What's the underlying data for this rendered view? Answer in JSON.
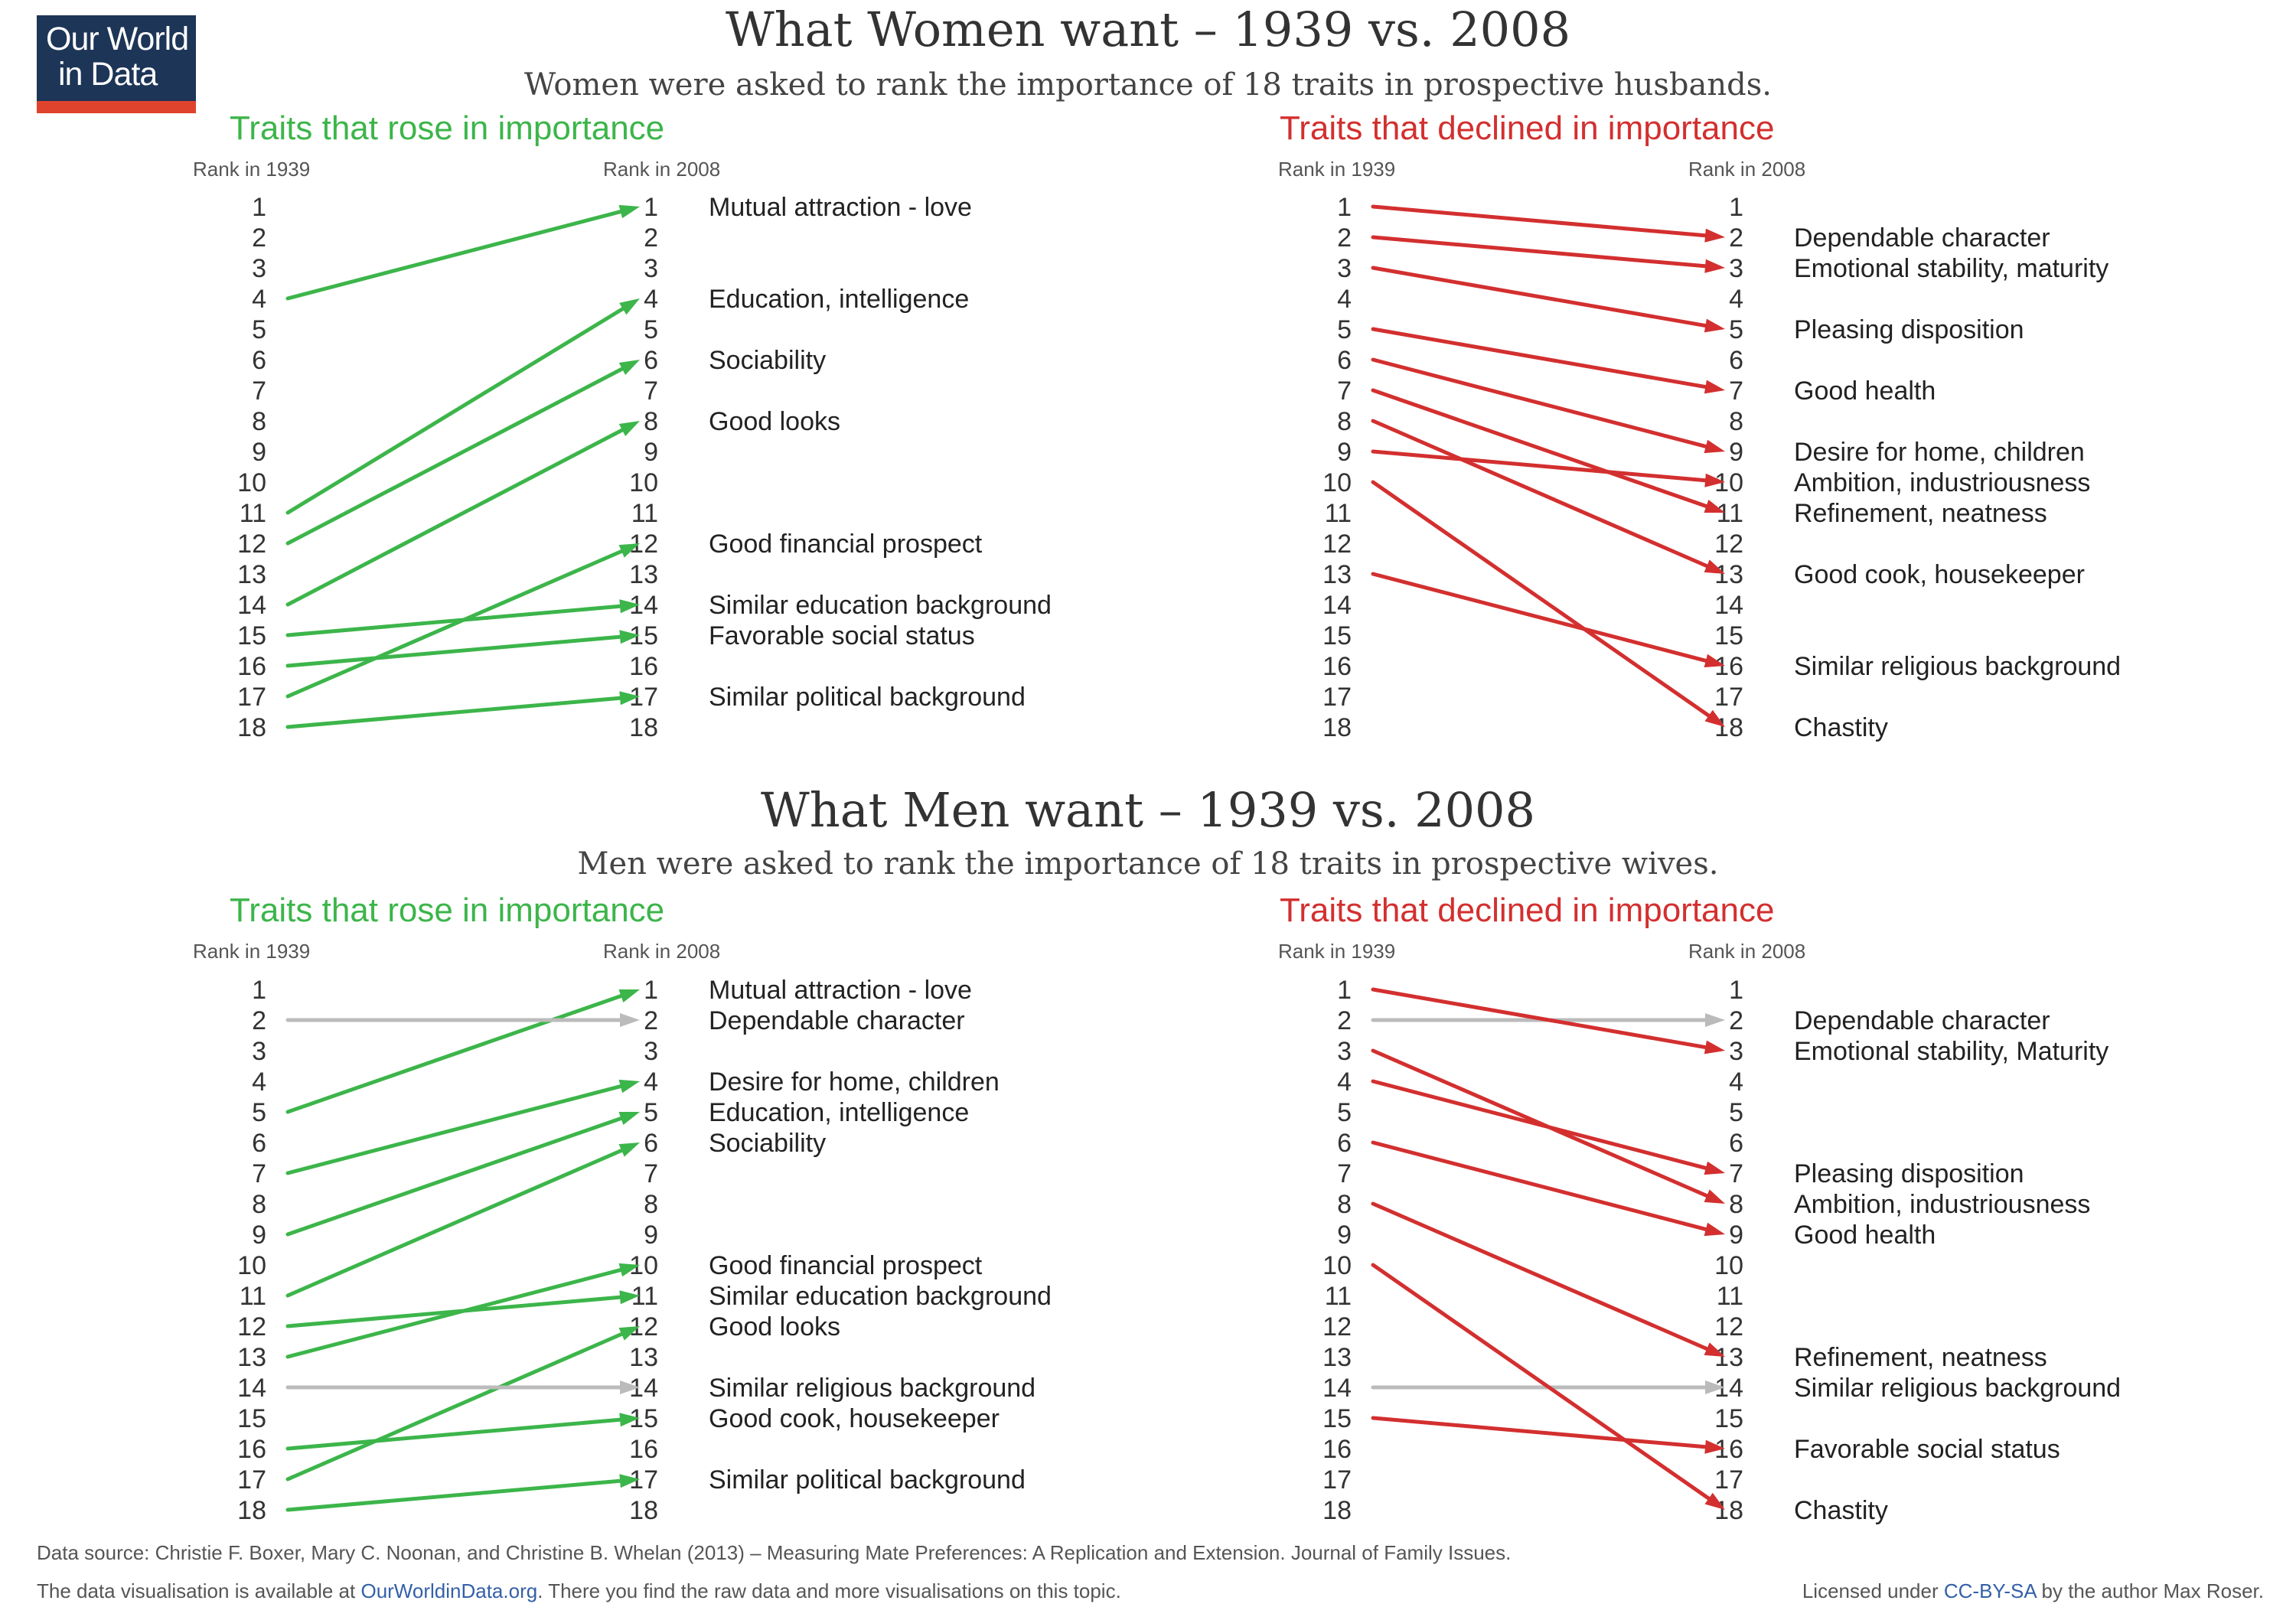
{
  "logo": {
    "line1": "Our World",
    "line2": "in Data"
  },
  "women": {
    "title": "What Women want – 1939 vs. 2008",
    "subtitle": "Women were asked to rank the importance of 18 traits in prospective husbands."
  },
  "men": {
    "title": "What Men want – 1939 vs. 2008",
    "subtitle": "Men were asked to rank the importance of 18 traits in prospective wives."
  },
  "colors": {
    "rose": "#3cb54a",
    "declined": "#d32f2f",
    "unchanged": "#bbbbbb"
  },
  "chart_data": [
    {
      "type": "slope",
      "title": "Traits that rose in importance",
      "section": "women",
      "xlabels": [
        "Rank in 1939",
        "Rank in 2008"
      ],
      "ranks": [
        1,
        2,
        3,
        4,
        5,
        6,
        7,
        8,
        9,
        10,
        11,
        12,
        13,
        14,
        15,
        16,
        17,
        18
      ],
      "series": [
        {
          "name": "Mutual attraction - love",
          "rank_1939": 4,
          "rank_2008": 1
        },
        {
          "name": "Education, intelligence",
          "rank_1939": 11,
          "rank_2008": 4
        },
        {
          "name": "Sociability",
          "rank_1939": 12,
          "rank_2008": 6
        },
        {
          "name": "Good looks",
          "rank_1939": 14,
          "rank_2008": 8
        },
        {
          "name": "Good financial prospect",
          "rank_1939": 17,
          "rank_2008": 12
        },
        {
          "name": "Similar education background",
          "rank_1939": 15,
          "rank_2008": 14
        },
        {
          "name": "Favorable social status",
          "rank_1939": 16,
          "rank_2008": 15
        },
        {
          "name": "Similar political background",
          "rank_1939": 18,
          "rank_2008": 17
        }
      ]
    },
    {
      "type": "slope",
      "title": "Traits that declined in importance",
      "section": "women",
      "xlabels": [
        "Rank in 1939",
        "Rank in 2008"
      ],
      "ranks": [
        1,
        2,
        3,
        4,
        5,
        6,
        7,
        8,
        9,
        10,
        11,
        12,
        13,
        14,
        15,
        16,
        17,
        18
      ],
      "series": [
        {
          "name": "Dependable character",
          "rank_1939": 1,
          "rank_2008": 2
        },
        {
          "name": "Emotional stability, maturity",
          "rank_1939": 2,
          "rank_2008": 3
        },
        {
          "name": "Pleasing disposition",
          "rank_1939": 3,
          "rank_2008": 5
        },
        {
          "name": "Good health",
          "rank_1939": 5,
          "rank_2008": 7
        },
        {
          "name": "Desire for home, children",
          "rank_1939": 6,
          "rank_2008": 9
        },
        {
          "name": "Ambition, industriousness",
          "rank_1939": 9,
          "rank_2008": 10
        },
        {
          "name": "Refinement, neatness",
          "rank_1939": 7,
          "rank_2008": 11
        },
        {
          "name": "Good cook, housekeeper",
          "rank_1939": 8,
          "rank_2008": 13
        },
        {
          "name": "Similar religious background",
          "rank_1939": 13,
          "rank_2008": 16
        },
        {
          "name": "Chastity",
          "rank_1939": 10,
          "rank_2008": 18
        }
      ]
    },
    {
      "type": "slope",
      "title": "Traits that rose in importance",
      "section": "men",
      "xlabels": [
        "Rank in 1939",
        "Rank in 2008"
      ],
      "ranks": [
        1,
        2,
        3,
        4,
        5,
        6,
        7,
        8,
        9,
        10,
        11,
        12,
        13,
        14,
        15,
        16,
        17,
        18
      ],
      "series": [
        {
          "name": "Mutual attraction - love",
          "rank_1939": 5,
          "rank_2008": 1
        },
        {
          "name": "Dependable character",
          "rank_1939": 2,
          "rank_2008": 2,
          "unchanged": true
        },
        {
          "name": "Desire for home, children",
          "rank_1939": 7,
          "rank_2008": 4
        },
        {
          "name": "Education, intelligence",
          "rank_1939": 9,
          "rank_2008": 5
        },
        {
          "name": "Sociability",
          "rank_1939": 11,
          "rank_2008": 6
        },
        {
          "name": "Good financial prospect",
          "rank_1939": 13,
          "rank_2008": 10
        },
        {
          "name": "Similar education background",
          "rank_1939": 12,
          "rank_2008": 11
        },
        {
          "name": "Good looks",
          "rank_1939": 17,
          "rank_2008": 12
        },
        {
          "name": "Similar religious background",
          "rank_1939": 14,
          "rank_2008": 14,
          "unchanged": true
        },
        {
          "name": "Good cook, housekeeper",
          "rank_1939": 16,
          "rank_2008": 15
        },
        {
          "name": "Similar political background",
          "rank_1939": 18,
          "rank_2008": 17
        }
      ]
    },
    {
      "type": "slope",
      "title": "Traits that declined in importance",
      "section": "men",
      "xlabels": [
        "Rank in 1939",
        "Rank in 2008"
      ],
      "ranks": [
        1,
        2,
        3,
        4,
        5,
        6,
        7,
        8,
        9,
        10,
        11,
        12,
        13,
        14,
        15,
        16,
        17,
        18
      ],
      "series": [
        {
          "name": "Dependable character",
          "rank_1939": 2,
          "rank_2008": 2,
          "unchanged": true
        },
        {
          "name": "Emotional stability, Maturity",
          "rank_1939": 1,
          "rank_2008": 3
        },
        {
          "name": "Pleasing disposition",
          "rank_1939": 4,
          "rank_2008": 7
        },
        {
          "name": "Ambition, industriousness",
          "rank_1939": 3,
          "rank_2008": 8
        },
        {
          "name": "Good health",
          "rank_1939": 6,
          "rank_2008": 9
        },
        {
          "name": "Refinement, neatness",
          "rank_1939": 8,
          "rank_2008": 13
        },
        {
          "name": "Similar religious background",
          "rank_1939": 14,
          "rank_2008": 14,
          "unchanged": true
        },
        {
          "name": "Favorable social status",
          "rank_1939": 15,
          "rank_2008": 16
        },
        {
          "name": "Chastity",
          "rank_1939": 10,
          "rank_2008": 18
        }
      ]
    }
  ],
  "footer": {
    "source": "Data source: Christie F. Boxer, Mary C. Noonan, and Christine B. Whelan (2013) – Measuring Mate Preferences: A Replication and Extension. Journal of Family Issues.",
    "avail_pre": "The data visualisation is available at ",
    "avail_link": "OurWorldinData.org",
    "avail_post": ". There you find the raw data and more visualisations on this topic.",
    "license_pre": "Licensed under ",
    "license_link": "CC-BY-SA",
    "license_post": " by the author Max Roser."
  }
}
